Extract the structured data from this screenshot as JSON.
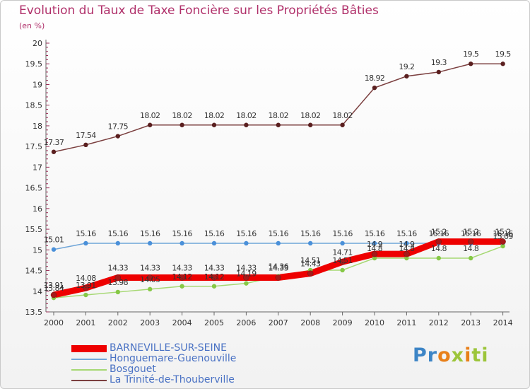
{
  "title": "Evolution du Taux de Taxe Foncière sur les Propriétés Bâties",
  "unit": "(en %)",
  "logo": {
    "p1": "Pr",
    "p2": "o",
    "p3": "x",
    "p4": "i",
    "p5": "ti"
  },
  "colors": {
    "title": "#b0306a",
    "axis": "#555555",
    "legend_text": "#4a72c4"
  },
  "chart_data": {
    "type": "line",
    "title": "Evolution du Taux de Taxe Foncière sur les Propriétés Bâties",
    "ylabel": "(en %)",
    "xlabel": "",
    "ylim": [
      13.5,
      20
    ],
    "yticks": [
      "13.5",
      "14",
      "14.5",
      "15",
      "15.5",
      "16",
      "16.5",
      "17",
      "17.5",
      "18",
      "18.5",
      "19",
      "19.5",
      "20"
    ],
    "x": [
      "2000",
      "2001",
      "2002",
      "2003",
      "2004",
      "2005",
      "2006",
      "2007",
      "2008",
      "2009",
      "2010",
      "2011",
      "2012",
      "2013",
      "2014"
    ],
    "series": [
      {
        "name": "BARNEVILLE-SUR-SEINE",
        "color": "#ee0000",
        "marker": "#a61919",
        "thick": true,
        "values": [
          13.91,
          14.08,
          14.33,
          14.33,
          14.33,
          14.33,
          14.33,
          14.33,
          14.43,
          14.71,
          14.9,
          14.9,
          15.2,
          15.2,
          15.2
        ],
        "labels": [
          "13.91",
          "14.08",
          "14.33",
          "14.33",
          "14.33",
          "14.33",
          "14.33",
          "14.33",
          "14.43",
          "14.71",
          "14.9",
          "14.9",
          "15.2",
          "15.2",
          "15.2"
        ]
      },
      {
        "name": "Honguemare-Guenouville",
        "color": "#6fa5d8",
        "marker": "#4a90d9",
        "thick": false,
        "values": [
          15.01,
          15.16,
          15.16,
          15.16,
          15.16,
          15.16,
          15.16,
          15.16,
          15.16,
          15.16,
          15.16,
          15.16,
          15.16,
          15.16,
          15.16
        ],
        "labels": [
          "15.01",
          "15.16",
          "15.16",
          "15.16",
          "15.16",
          "15.16",
          "15.16",
          "15.16",
          "15.16",
          "15.16",
          "15.16",
          "15.16",
          "15.16",
          "15.16",
          "15.16"
        ]
      },
      {
        "name": "Bosgouet",
        "color": "#a6d873",
        "marker": "#86c846",
        "thick": false,
        "values": [
          13.84,
          13.91,
          13.98,
          14.05,
          14.12,
          14.12,
          14.19,
          14.36,
          14.51,
          14.51,
          14.8,
          14.8,
          14.8,
          14.8,
          15.09
        ],
        "labels": [
          "13.84",
          "13.91",
          "13.98",
          "14.05",
          "14.12",
          "14.12",
          "14.19",
          "14.36",
          "14.51",
          "14.51",
          "14.8",
          "14.8",
          "14.8",
          "14.8",
          "15.09"
        ]
      },
      {
        "name": "La Trinité-de-Thouberville",
        "color": "#7b3f3f",
        "marker": "#5a1f1f",
        "thick": false,
        "values": [
          17.37,
          17.54,
          17.75,
          18.02,
          18.02,
          18.02,
          18.02,
          18.02,
          18.02,
          18.02,
          18.92,
          19.2,
          19.3,
          19.5,
          19.5
        ],
        "labels": [
          "17.37",
          "17.54",
          "17.75",
          "18.02",
          "18.02",
          "18.02",
          "18.02",
          "18.02",
          "18.02",
          "18.02",
          "18.92",
          "19.2",
          "19.3",
          "19.5",
          "19.5"
        ]
      }
    ],
    "legend_position": "bottom-left"
  }
}
